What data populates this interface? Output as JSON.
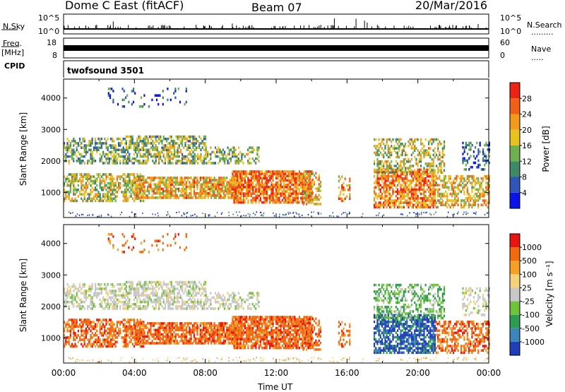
{
  "header": {
    "station": "Dome C East (fitACF)",
    "beam": "Beam 07",
    "date": "20/Mar/2016"
  },
  "left_labels": {
    "nsky": "N.Sky",
    "freq_line1": "Freq.",
    "freq_line2": "[MHz]",
    "cpid": "CPID"
  },
  "right_labels": {
    "nsearch": "N.Search",
    "nsearch_dots": ".........",
    "nave": "Nave",
    "nave_dots": "....."
  },
  "cpid_value": "twofsound 3501",
  "chart_data": [
    {
      "type": "line",
      "name": "nsky-nsearch-panel",
      "left_ticks": [
        "10^5",
        "10^0"
      ],
      "right_ticks": [
        "10^5",
        "10^0"
      ],
      "baseline_fraction": 0.25
    },
    {
      "type": "line",
      "name": "freq-nave-panel",
      "left_ticks": [
        "18",
        "8"
      ],
      "right_ticks": [
        "60",
        "0"
      ],
      "freq_fraction": 0.5
    },
    {
      "type": "heatmap",
      "name": "power-panel",
      "ylabel": "Slant Range [km]",
      "yticks": [
        1000,
        2000,
        3000,
        4000
      ],
      "ylim": [
        200,
        4600
      ],
      "xlim": [
        0,
        24
      ],
      "colorbar": {
        "label": "Power [dB]",
        "ticks": [
          "4",
          "8",
          "12",
          "16",
          "20",
          "24",
          "28"
        ],
        "colors": [
          "#0a14e6",
          "#2e56b8",
          "#3f8a64",
          "#6fb050",
          "#e8c21e",
          "#f39a1c",
          "#f0601a",
          "#ec2214"
        ]
      }
    },
    {
      "type": "heatmap",
      "name": "velocity-panel",
      "ylabel": "Slant Range [km]",
      "yticks": [
        1000,
        2000,
        3000,
        4000
      ],
      "ylim": [
        200,
        4600
      ],
      "xlim": [
        0,
        24
      ],
      "colorbar": {
        "label": "Velocity [m s⁻¹]",
        "ticks": [
          "1000",
          "500",
          "100",
          "25",
          "-25",
          "-100",
          "-500",
          "-1000"
        ],
        "colors": [
          "#1f3fb8",
          "#3d84b8",
          "#2f9a52",
          "#6fc43a",
          "#c8c8c8",
          "#f5d27a",
          "#f5a028",
          "#f06a10",
          "#e81410"
        ]
      }
    }
  ],
  "xaxis": {
    "label": "Time UT",
    "ticks": [
      "00:00",
      "04:00",
      "08:00",
      "12:00",
      "16:00",
      "20:00",
      "00:00"
    ]
  }
}
